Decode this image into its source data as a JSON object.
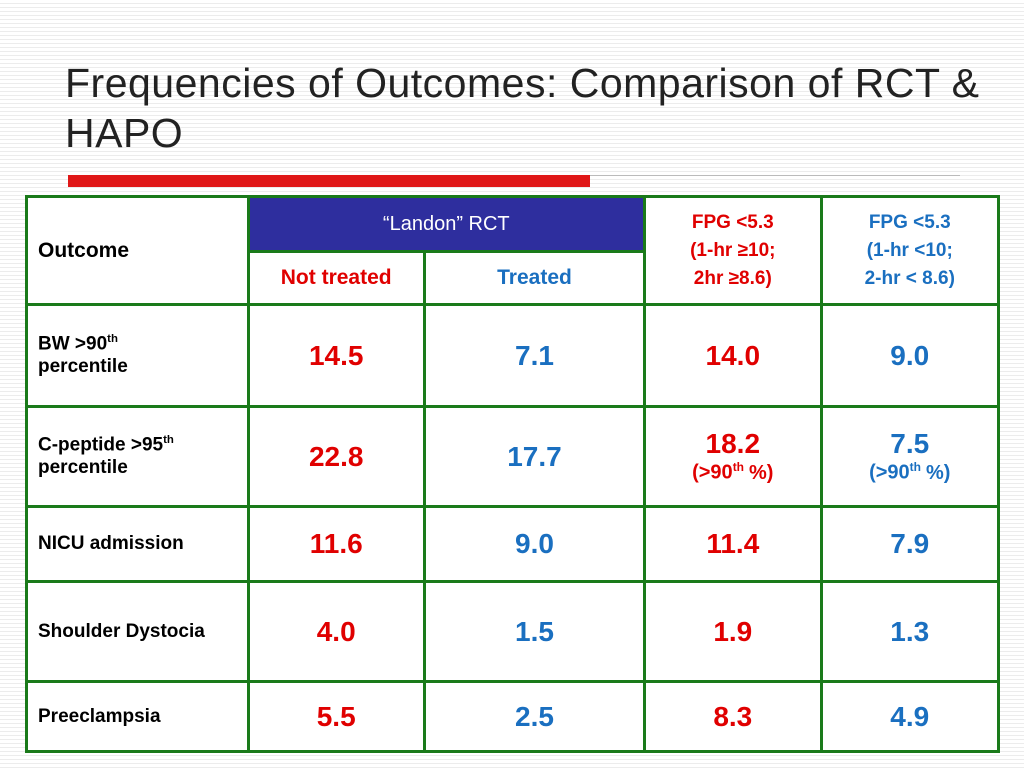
{
  "title": "Frequencies of Outcomes: Comparison of RCT & HAPO",
  "table": {
    "header": {
      "outcome": "Outcome",
      "rct": "“Landon” RCT",
      "not_treated": "Not treated",
      "treated": "Treated",
      "fpg_high": [
        "FPG <5.3",
        "(1-hr ≥10;",
        "2hr ≥8.6)"
      ],
      "fpg_low": [
        "FPG <5.3",
        "(1-hr <10;",
        "2-hr < 8.6)"
      ]
    },
    "rows": [
      {
        "label": {
          "pre": "BW >90",
          "sup": "th",
          "post": "percentile"
        },
        "values": [
          "14.5",
          "7.1",
          "14.0",
          "9.0"
        ]
      },
      {
        "label": {
          "pre": "C-peptide >95",
          "sup": "th",
          "post": "percentile"
        },
        "values": [
          "22.8",
          "17.7",
          "18.2",
          "7.5"
        ],
        "notes": {
          "2": {
            "pre": "(>90",
            "sup": "th",
            "post": "%)"
          },
          "3": {
            "pre": "(>90",
            "sup": "th",
            "post": "%)"
          }
        }
      },
      {
        "label": {
          "pre": "NICU admission"
        },
        "values": [
          "11.6",
          "9.0",
          "11.4",
          "7.9"
        ]
      },
      {
        "label": {
          "pre": "Shoulder Dystocia"
        },
        "values": [
          "4.0",
          "1.5",
          "1.9",
          "1.3"
        ]
      },
      {
        "label": {
          "pre": "Preeclampsia"
        },
        "values": [
          "5.5",
          "2.5",
          "8.3",
          "4.9"
        ]
      }
    ]
  }
}
